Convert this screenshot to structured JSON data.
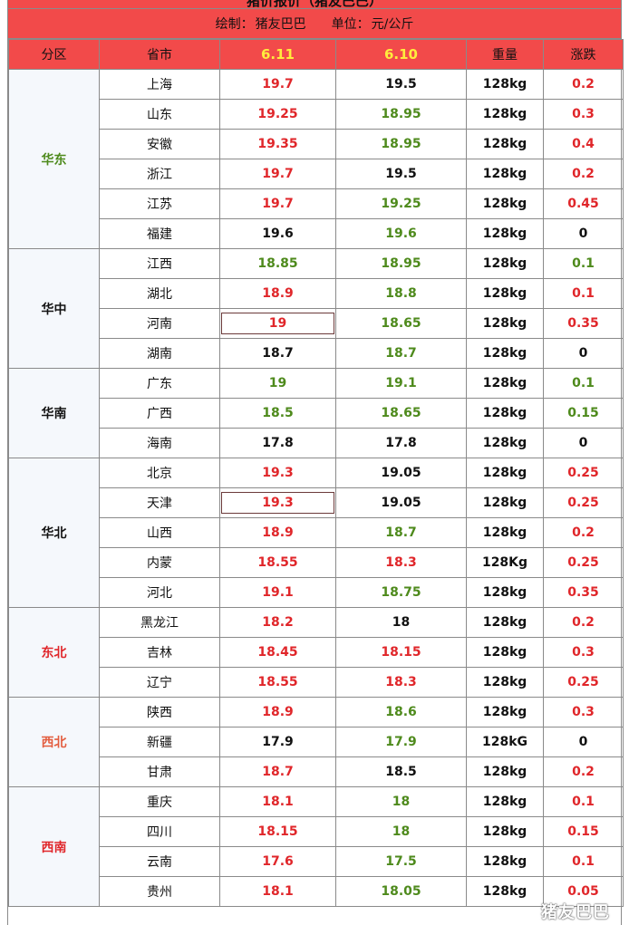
{
  "title": "猪价报价（猪友巴巴）",
  "subtitle": {
    "author_label": "绘制：",
    "author": "猪友巴巴",
    "unit_label": "单位：",
    "unit": "元/公斤"
  },
  "headers": [
    "分区",
    "省市",
    "6.11",
    "6.10",
    "重量",
    "涨跌"
  ],
  "colors": {
    "header_bg": "#f24a4a",
    "date_header": "#ffec3d",
    "up": "#e0262a",
    "down": "#4e8a1c",
    "flat": "#111111",
    "region_bg": "#f5f8fc"
  },
  "regions": [
    {
      "name": "华东",
      "color": "green",
      "rows": [
        {
          "province": "上海",
          "d611": "19.7",
          "c611": "red",
          "d610": "19.5",
          "c610": "black",
          "weight": "128kg",
          "change": "0.2",
          "cchg": "red"
        },
        {
          "province": "山东",
          "d611": "19.25",
          "c611": "red",
          "d610": "18.95",
          "c610": "green",
          "weight": "128kg",
          "change": "0.3",
          "cchg": "red"
        },
        {
          "province": "安徽",
          "d611": "19.35",
          "c611": "red",
          "d610": "18.95",
          "c610": "green",
          "weight": "128kg",
          "change": "0.4",
          "cchg": "red"
        },
        {
          "province": "浙江",
          "d611": "19.7",
          "c611": "red",
          "d610": "19.5",
          "c610": "black",
          "weight": "128kg",
          "change": "0.2",
          "cchg": "red"
        },
        {
          "province": "江苏",
          "d611": "19.7",
          "c611": "red",
          "d610": "19.25",
          "c610": "green",
          "weight": "128kg",
          "change": "0.45",
          "cchg": "red"
        },
        {
          "province": "福建",
          "d611": "19.6",
          "c611": "black",
          "d610": "19.6",
          "c610": "green",
          "weight": "128kg",
          "change": "0",
          "cchg": "black"
        }
      ]
    },
    {
      "name": "华中",
      "color": "black",
      "rows": [
        {
          "province": "江西",
          "d611": "18.85",
          "c611": "green",
          "d610": "18.95",
          "c610": "green",
          "weight": "128kg",
          "change": "0.1",
          "cchg": "green"
        },
        {
          "province": "湖北",
          "d611": "18.9",
          "c611": "red",
          "d610": "18.8",
          "c610": "green",
          "weight": "128kg",
          "change": "0.1",
          "cchg": "red"
        },
        {
          "province": "河南",
          "d611": "19",
          "c611": "red",
          "boxed": true,
          "d610": "18.65",
          "c610": "green",
          "weight": "128kg",
          "change": "0.35",
          "cchg": "red"
        },
        {
          "province": "湖南",
          "d611": "18.7",
          "c611": "black",
          "d610": "18.7",
          "c610": "green",
          "weight": "128kg",
          "change": "0",
          "cchg": "black"
        }
      ]
    },
    {
      "name": "华南",
      "color": "black",
      "rows": [
        {
          "province": "广东",
          "d611": "19",
          "c611": "green",
          "d610": "19.1",
          "c610": "green",
          "weight": "128kg",
          "change": "0.1",
          "cchg": "green"
        },
        {
          "province": "广西",
          "d611": "18.5",
          "c611": "green",
          "d610": "18.65",
          "c610": "green",
          "weight": "128kg",
          "change": "0.15",
          "cchg": "green"
        },
        {
          "province": "海南",
          "d611": "17.8",
          "c611": "black",
          "d610": "17.8",
          "c610": "black",
          "weight": "128kg",
          "change": "0",
          "cchg": "black"
        }
      ]
    },
    {
      "name": "华北",
      "color": "black",
      "rows": [
        {
          "province": "北京",
          "d611": "19.3",
          "c611": "red",
          "d610": "19.05",
          "c610": "black",
          "weight": "128kg",
          "change": "0.25",
          "cchg": "red"
        },
        {
          "province": "天津",
          "d611": "19.3",
          "c611": "red",
          "boxed": true,
          "d610": "19.05",
          "c610": "black",
          "weight": "128kg",
          "change": "0.25",
          "cchg": "red"
        },
        {
          "province": "山西",
          "d611": "18.9",
          "c611": "red",
          "d610": "18.7",
          "c610": "green",
          "weight": "128kg",
          "change": "0.2",
          "cchg": "red"
        },
        {
          "province": "内蒙",
          "d611": "18.55",
          "c611": "red",
          "d610": "18.3",
          "c610": "red",
          "weight": "128Kg",
          "change": "0.25",
          "cchg": "red"
        },
        {
          "province": "河北",
          "d611": "19.1",
          "c611": "red",
          "d610": "18.75",
          "c610": "green",
          "weight": "128kg",
          "change": "0.35",
          "cchg": "red"
        }
      ]
    },
    {
      "name": "东北",
      "color": "red",
      "rows": [
        {
          "province": "黑龙江",
          "d611": "18.2",
          "c611": "red",
          "d610": "18",
          "c610": "black",
          "weight": "128kg",
          "change": "0.2",
          "cchg": "red"
        },
        {
          "province": "吉林",
          "d611": "18.45",
          "c611": "red",
          "d610": "18.15",
          "c610": "red",
          "weight": "128kg",
          "change": "0.3",
          "cchg": "red"
        },
        {
          "province": "辽宁",
          "d611": "18.55",
          "c611": "red",
          "d610": "18.3",
          "c610": "red",
          "weight": "128kg",
          "change": "0.25",
          "cchg": "red"
        }
      ]
    },
    {
      "name": "西北",
      "color": "orange",
      "rows": [
        {
          "province": "陕西",
          "d611": "18.9",
          "c611": "red",
          "d610": "18.6",
          "c610": "green",
          "weight": "128kg",
          "change": "0.3",
          "cchg": "red"
        },
        {
          "province": "新疆",
          "d611": "17.9",
          "c611": "black",
          "d610": "17.9",
          "c610": "green",
          "weight": "128kG",
          "change": "0",
          "cchg": "black"
        },
        {
          "province": "甘肃",
          "d611": "18.7",
          "c611": "red",
          "d610": "18.5",
          "c610": "black",
          "weight": "128kg",
          "change": "0.2",
          "cchg": "red"
        }
      ]
    },
    {
      "name": "西南",
      "color": "red",
      "rows": [
        {
          "province": "重庆",
          "d611": "18.1",
          "c611": "red",
          "d610": "18",
          "c610": "green",
          "weight": "128kg",
          "change": "0.1",
          "cchg": "red"
        },
        {
          "province": "四川",
          "d611": "18.15",
          "c611": "red",
          "d610": "18",
          "c610": "green",
          "weight": "128kg",
          "change": "0.15",
          "cchg": "red"
        },
        {
          "province": "云南",
          "pcolor": "green",
          "d611": "17.6",
          "c611": "red",
          "d610": "17.5",
          "c610": "green",
          "weight": "128kg",
          "change": "0.1",
          "cchg": "red"
        },
        {
          "province": "贵州",
          "d611": "18.1",
          "c611": "red",
          "d610": "18.05",
          "c610": "green",
          "weight": "128kg",
          "change": "0.05",
          "cchg": "red"
        }
      ]
    }
  ],
  "watermark": "猪友巴巴"
}
